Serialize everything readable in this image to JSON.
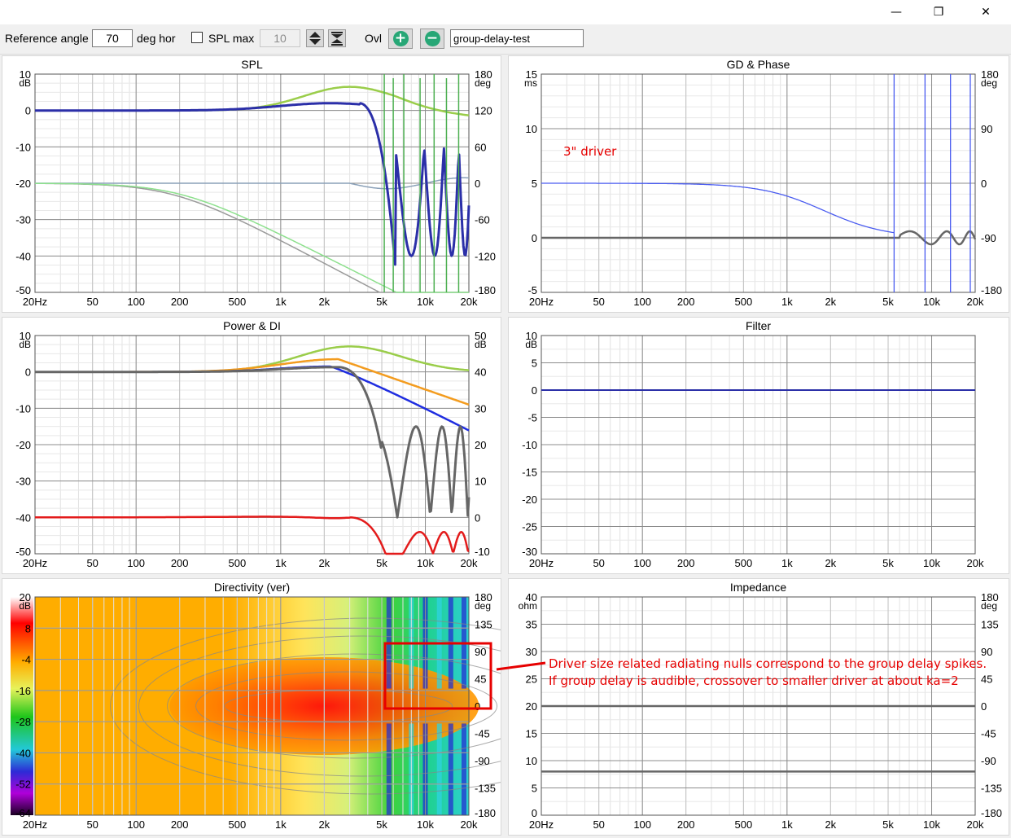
{
  "window": {
    "minimize_icon": "minimize-icon",
    "maximize_icon": "restore-icon",
    "close_icon": "close-icon"
  },
  "toolbar": {
    "ref_angle_label": "Reference angle",
    "ref_angle_value": "70",
    "ref_angle_unit": "deg hor",
    "spl_max_label": "SPL max",
    "spl_max_checked": false,
    "spl_max_value": "10",
    "ovl_label": "Ovl",
    "overlay_name": "group-delay-test"
  },
  "x_ticks": [
    "20Hz",
    "50",
    "100",
    "200",
    "500",
    "1k",
    "2k",
    "5k",
    "10k",
    "20k"
  ],
  "panels": {
    "spl": {
      "title": "SPL",
      "left_unit": "dB",
      "left_ticks": [
        "10",
        "0",
        "-10",
        "-20",
        "-30",
        "-40",
        "-50"
      ],
      "right_unit": "deg",
      "right_ticks": [
        "180",
        "120",
        "60",
        "0",
        "-60",
        "-120",
        "-180"
      ]
    },
    "gd": {
      "title": "GD & Phase",
      "left_unit": "ms",
      "left_ticks": [
        "15",
        "10",
        "5",
        "0",
        "-5"
      ],
      "right_unit": "deg",
      "right_ticks": [
        "180",
        "90",
        "0",
        "-90",
        "-180"
      ],
      "annotation": "3\" driver"
    },
    "power": {
      "title": "Power & DI",
      "left_unit": "dB",
      "left_ticks": [
        "10",
        "0",
        "-10",
        "-20",
        "-30",
        "-40",
        "-50"
      ],
      "right_unit": "dB",
      "right_ticks": [
        "50",
        "40",
        "30",
        "20",
        "10",
        "0",
        "-10"
      ]
    },
    "filter": {
      "title": "Filter",
      "left_unit": "dB",
      "left_ticks": [
        "10",
        "5",
        "0",
        "-5",
        "-10",
        "-15",
        "-20",
        "-25",
        "-30"
      ]
    },
    "directivity": {
      "title": "Directivity (ver)",
      "left_unit": "dB",
      "left_ticks": [
        "20",
        "8",
        "-4",
        "-16",
        "-28",
        "-40",
        "-52",
        "-64"
      ],
      "right_unit": "deg",
      "right_ticks": [
        "180",
        "135",
        "90",
        "45",
        "0",
        "-45",
        "-90",
        "-135",
        "-180"
      ]
    },
    "impedance": {
      "title": "Impedance",
      "left_unit": "ohm",
      "left_ticks": [
        "40",
        "35",
        "30",
        "25",
        "20",
        "15",
        "10",
        "5",
        "0"
      ],
      "right_unit": "deg",
      "right_ticks": [
        "180",
        "135",
        "90",
        "45",
        "0",
        "-45",
        "-90",
        "-135",
        "-180"
      ]
    }
  },
  "colors": {
    "green_light": "#9acd4a",
    "blue_dark": "#2b2fa8",
    "green": "#4caf50",
    "gray": "#6e6e6e",
    "orange": "#f39c1f",
    "red": "#e31b1b",
    "blue": "#1f2de0",
    "annot": "#e60000"
  },
  "annotation_text": {
    "line1": "Driver size related radiating nulls correspond to the group delay spikes.",
    "line2": "If group delay is audible, crossover to smaller driver at about ka=2"
  }
}
